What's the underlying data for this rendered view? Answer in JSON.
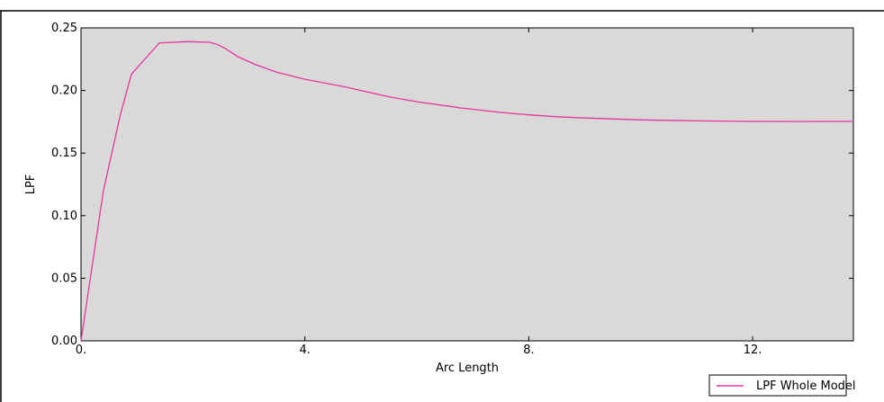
{
  "chart_data": {
    "type": "line",
    "xlabel": "Arc Length",
    "ylabel": "LPF",
    "xlim": [
      0,
      13.8
    ],
    "ylim": [
      0,
      0.25
    ],
    "x_ticks": [
      0,
      4,
      8,
      12
    ],
    "x_tick_labels": [
      "0.",
      "4.",
      "8.",
      "12."
    ],
    "y_ticks": [
      0,
      0.05,
      0.1,
      0.15,
      0.2,
      0.25
    ],
    "y_tick_labels": [
      "0.00",
      "0.05",
      "0.10",
      "0.15",
      "0.20",
      "0.25"
    ],
    "plot_background": "#d9d9d9",
    "grid": false,
    "legend_position": "bottom-right",
    "series": [
      {
        "name": "LPF Whole Model",
        "color": "#e8349e",
        "x": [
          0,
          0.1,
          0.4,
          0.7,
          0.9,
          1.4,
          1.9,
          2.3,
          2.45,
          2.6,
          2.8,
          3.1,
          3.5,
          4.0,
          4.7,
          5.0,
          5.5,
          6.0,
          6.8,
          7.5,
          8.0,
          8.5,
          9.0,
          10.0,
          11.0,
          12.0,
          12.8,
          13.8
        ],
        "y": [
          0,
          0.03,
          0.12,
          0.18,
          0.213,
          0.238,
          0.239,
          0.2385,
          0.2365,
          0.233,
          0.227,
          0.221,
          0.2145,
          0.209,
          0.203,
          0.2,
          0.195,
          0.191,
          0.186,
          0.1825,
          0.1805,
          0.179,
          0.178,
          0.1765,
          0.1757,
          0.1753,
          0.1752,
          0.1753
        ]
      }
    ]
  }
}
